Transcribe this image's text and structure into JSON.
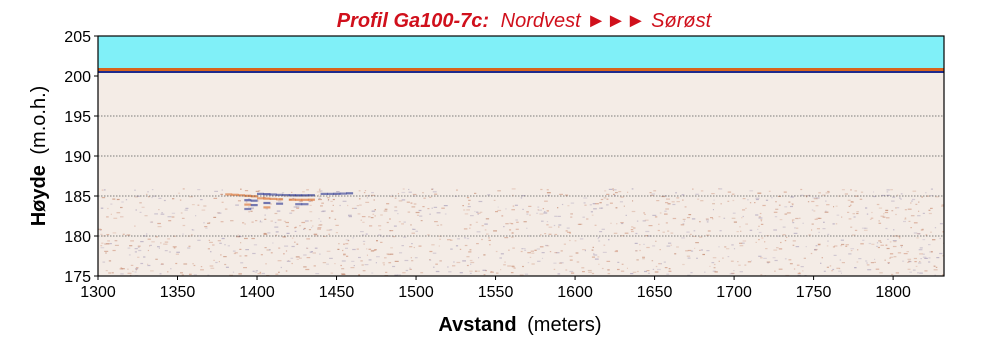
{
  "chart_data": {
    "type": "heatmap",
    "title_bold": "Profil Ga100-7c:",
    "title_rest": "Nordvest ►►► Sørøst",
    "xlabel_bold": "Avstand",
    "xlabel_rest": "(meters)",
    "ylabel_bold": "Høyde",
    "ylabel_rest": "(m.o.h.)",
    "xlim": [
      1300,
      1832
    ],
    "ylim": [
      175,
      205
    ],
    "x_ticks": [
      1300,
      1350,
      1400,
      1450,
      1500,
      1550,
      1600,
      1650,
      1700,
      1750,
      1800
    ],
    "y_ticks": [
      175,
      180,
      185,
      190,
      195,
      200,
      205
    ],
    "gridlines_y": [
      180,
      185,
      190,
      195
    ],
    "air_layer": {
      "from": 201,
      "to": 205
    },
    "reflector_zone": {
      "from": 186,
      "to": 201
    },
    "colors": {
      "title": "#d0101c",
      "air": "#80f0f8",
      "positive_amplitude": "#d8641e",
      "negative_amplitude": "#1e2a8c",
      "neutral": "#f4ece6",
      "grid": "#555555",
      "axis": "#000000"
    }
  }
}
